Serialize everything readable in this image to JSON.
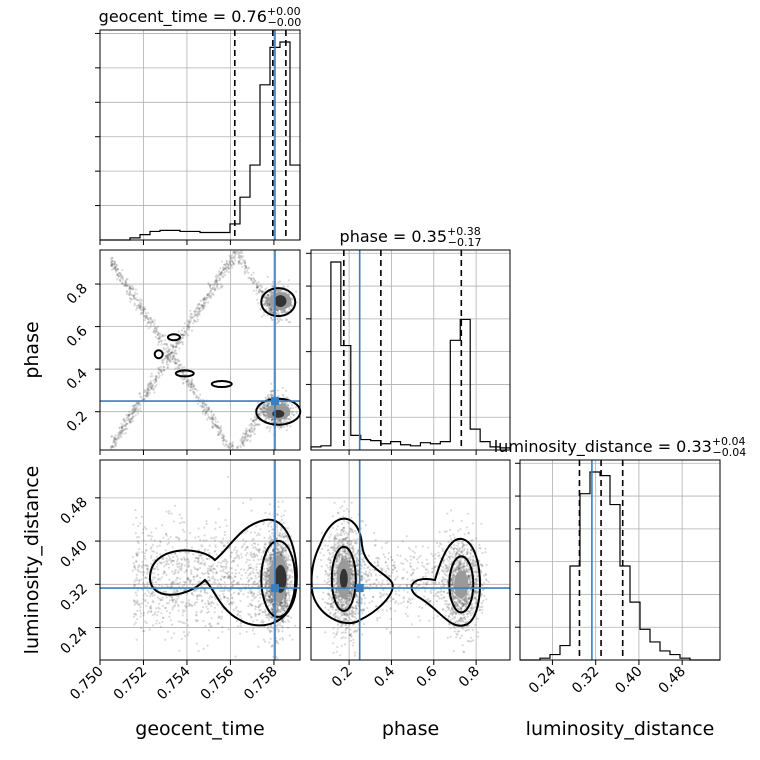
{
  "chart_data": {
    "type": "corner",
    "parameters": [
      "geocent_time",
      "phase",
      "luminosity_distance"
    ],
    "titles": [
      {
        "prefix": "geocent_time = ",
        "value": "0.76",
        "upper": "+0.00",
        "lower": "−0.00"
      },
      {
        "prefix": "phase = ",
        "value": "0.35",
        "upper": "+0.38",
        "lower": "−0.17"
      },
      {
        "prefix": "luminosity_distance = ",
        "value": "0.33",
        "upper": "+0.04",
        "lower": "−0.04"
      }
    ],
    "ranges": {
      "geocent_time": [
        0.75,
        0.7592
      ],
      "phase": [
        0.02,
        0.96
      ],
      "luminosity_distance": [
        0.18,
        0.55
      ]
    },
    "ticks": {
      "geocent_time": [
        "0.750",
        "0.752",
        "0.754",
        "0.756",
        "0.758"
      ],
      "phase": [
        "0.2",
        "0.4",
        "0.6",
        "0.8"
      ],
      "luminosity_distance": [
        "0.24",
        "0.32",
        "0.40",
        "0.48"
      ]
    },
    "truths": {
      "geocent_time": 0.75805,
      "phase": 0.25,
      "luminosity_distance": 0.313
    },
    "quantiles": {
      "geocent_time": [
        0.7562,
        0.75795,
        0.75855
      ],
      "phase": [
        0.175,
        0.35,
        0.73
      ],
      "luminosity_distance": [
        0.29,
        0.33,
        0.37
      ]
    },
    "histograms": {
      "geocent_time": {
        "edges_start": 0.75,
        "bin_width": 0.00046,
        "counts": [
          0,
          0,
          0,
          2,
          5,
          8,
          9,
          9,
          8,
          8,
          7,
          7,
          7,
          15,
          40,
          70,
          145,
          180,
          185,
          70,
          0
        ]
      },
      "phase": {
        "edges_start": 0.02,
        "bin_width": 0.047,
        "counts": [
          3,
          4,
          180,
          100,
          14,
          10,
          9,
          6,
          8,
          5,
          4,
          7,
          6,
          8,
          105,
          125,
          20,
          8,
          3,
          2
        ]
      },
      "luminosity_distance": {
        "edges_start": 0.18,
        "bin_width": 0.0185,
        "counts": [
          0,
          0,
          1,
          3,
          8,
          52,
          92,
          104,
          102,
          86,
          52,
          32,
          17,
          10,
          5,
          3,
          1,
          0,
          0,
          0
        ]
      }
    },
    "grid": true
  }
}
